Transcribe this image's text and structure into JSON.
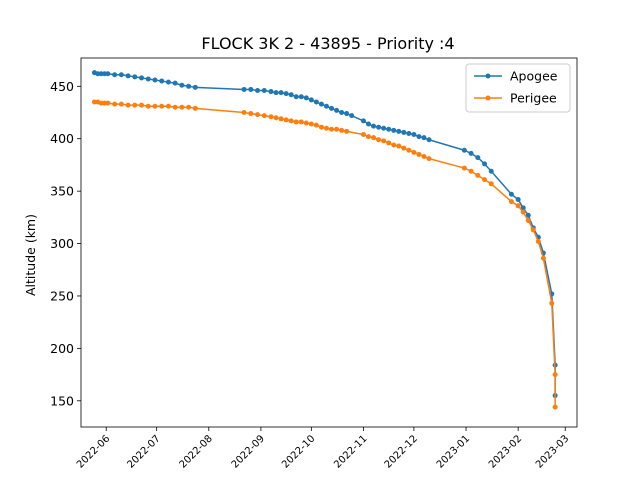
{
  "chart_data": {
    "type": "line",
    "title": "FLOCK 3K 2 - 43895 - Priority :4",
    "xlabel": "",
    "ylabel": "Altitude (km)",
    "x_tick_labels": [
      "2022-06",
      "2022-07",
      "2022-08",
      "2022-09",
      "2022-10",
      "2022-11",
      "2022-12",
      "2023-01",
      "2023-02",
      "2023-03"
    ],
    "x_ticks": [
      "2022-06-01",
      "2022-07-01",
      "2022-08-01",
      "2022-09-01",
      "2022-10-01",
      "2022-11-01",
      "2022-12-01",
      "2023-01-01",
      "2023-02-01",
      "2023-03-01"
    ],
    "xlim": [
      "2022-05-17",
      "2023-03-08"
    ],
    "y_ticks": [
      150,
      200,
      250,
      300,
      350,
      400,
      450
    ],
    "ylim": [
      125,
      477
    ],
    "grid": false,
    "legend_position": "top-right",
    "series": [
      {
        "name": "Apogee",
        "color": "#1f77b4",
        "points": [
          [
            "2022-05-25",
            463
          ],
          [
            "2022-05-27",
            462
          ],
          [
            "2022-05-29",
            462
          ],
          [
            "2022-05-31",
            462
          ],
          [
            "2022-06-02",
            462
          ],
          [
            "2022-06-06",
            461
          ],
          [
            "2022-06-10",
            461
          ],
          [
            "2022-06-14",
            460
          ],
          [
            "2022-06-18",
            459
          ],
          [
            "2022-06-22",
            458
          ],
          [
            "2022-06-26",
            457
          ],
          [
            "2022-06-30",
            456
          ],
          [
            "2022-07-04",
            455
          ],
          [
            "2022-07-08",
            454
          ],
          [
            "2022-07-12",
            453
          ],
          [
            "2022-07-16",
            451
          ],
          [
            "2022-07-20",
            450
          ],
          [
            "2022-07-24",
            449
          ],
          [
            "2022-08-22",
            447
          ],
          [
            "2022-08-26",
            447
          ],
          [
            "2022-08-30",
            446
          ],
          [
            "2022-09-03",
            446
          ],
          [
            "2022-09-07",
            445
          ],
          [
            "2022-09-10",
            444
          ],
          [
            "2022-09-13",
            444
          ],
          [
            "2022-09-16",
            443
          ],
          [
            "2022-09-19",
            442
          ],
          [
            "2022-09-22",
            440
          ],
          [
            "2022-09-25",
            440
          ],
          [
            "2022-09-28",
            439
          ],
          [
            "2022-10-01",
            437
          ],
          [
            "2022-10-04",
            435
          ],
          [
            "2022-10-07",
            433
          ],
          [
            "2022-10-10",
            431
          ],
          [
            "2022-10-13",
            429
          ],
          [
            "2022-10-16",
            427
          ],
          [
            "2022-10-19",
            425
          ],
          [
            "2022-10-22",
            424
          ],
          [
            "2022-10-25",
            422
          ],
          [
            "2022-11-01",
            417
          ],
          [
            "2022-11-04",
            414
          ],
          [
            "2022-11-07",
            412
          ],
          [
            "2022-11-10",
            411
          ],
          [
            "2022-11-13",
            410
          ],
          [
            "2022-11-16",
            409
          ],
          [
            "2022-11-19",
            408
          ],
          [
            "2022-11-22",
            407
          ],
          [
            "2022-11-25",
            406
          ],
          [
            "2022-11-28",
            405
          ],
          [
            "2022-12-01",
            404
          ],
          [
            "2022-12-04",
            402
          ],
          [
            "2022-12-07",
            401
          ],
          [
            "2022-12-10",
            399
          ],
          [
            "2022-12-31",
            389
          ],
          [
            "2023-01-04",
            386
          ],
          [
            "2023-01-08",
            382
          ],
          [
            "2023-01-12",
            376
          ],
          [
            "2023-01-16",
            369
          ],
          [
            "2023-01-28",
            347
          ],
          [
            "2023-02-01",
            342
          ],
          [
            "2023-02-04",
            334
          ],
          [
            "2023-02-07",
            327
          ],
          [
            "2023-02-10",
            315
          ],
          [
            "2023-02-13",
            306
          ],
          [
            "2023-02-16",
            291
          ],
          [
            "2023-02-21",
            252
          ],
          [
            "2023-02-23",
            184
          ],
          [
            "2023-02-23",
            155
          ]
        ]
      },
      {
        "name": "Perigee",
        "color": "#ff7f0e",
        "points": [
          [
            "2022-05-25",
            435
          ],
          [
            "2022-05-27",
            435
          ],
          [
            "2022-05-29",
            434
          ],
          [
            "2022-05-31",
            434
          ],
          [
            "2022-06-02",
            434
          ],
          [
            "2022-06-06",
            433
          ],
          [
            "2022-06-10",
            433
          ],
          [
            "2022-06-14",
            432
          ],
          [
            "2022-06-18",
            432
          ],
          [
            "2022-06-22",
            432
          ],
          [
            "2022-06-26",
            431
          ],
          [
            "2022-06-30",
            431
          ],
          [
            "2022-07-04",
            431
          ],
          [
            "2022-07-08",
            431
          ],
          [
            "2022-07-12",
            430
          ],
          [
            "2022-07-16",
            430
          ],
          [
            "2022-07-20",
            430
          ],
          [
            "2022-07-24",
            429
          ],
          [
            "2022-08-22",
            425
          ],
          [
            "2022-08-26",
            424
          ],
          [
            "2022-08-30",
            423
          ],
          [
            "2022-09-03",
            422
          ],
          [
            "2022-09-07",
            421
          ],
          [
            "2022-09-10",
            420
          ],
          [
            "2022-09-13",
            419
          ],
          [
            "2022-09-16",
            418
          ],
          [
            "2022-09-19",
            417
          ],
          [
            "2022-09-22",
            416
          ],
          [
            "2022-09-25",
            416
          ],
          [
            "2022-09-28",
            415
          ],
          [
            "2022-10-01",
            414
          ],
          [
            "2022-10-04",
            413
          ],
          [
            "2022-10-07",
            411
          ],
          [
            "2022-10-10",
            410
          ],
          [
            "2022-10-13",
            409
          ],
          [
            "2022-10-16",
            409
          ],
          [
            "2022-10-19",
            408
          ],
          [
            "2022-10-22",
            407
          ],
          [
            "2022-11-01",
            404
          ],
          [
            "2022-11-04",
            402
          ],
          [
            "2022-11-07",
            401
          ],
          [
            "2022-11-10",
            399
          ],
          [
            "2022-11-13",
            398
          ],
          [
            "2022-11-16",
            396
          ],
          [
            "2022-11-19",
            394
          ],
          [
            "2022-11-22",
            393
          ],
          [
            "2022-11-25",
            391
          ],
          [
            "2022-11-28",
            389
          ],
          [
            "2022-12-01",
            387
          ],
          [
            "2022-12-04",
            385
          ],
          [
            "2022-12-07",
            383
          ],
          [
            "2022-12-10",
            381
          ],
          [
            "2022-12-31",
            372
          ],
          [
            "2023-01-04",
            369
          ],
          [
            "2023-01-08",
            365
          ],
          [
            "2023-01-12",
            361
          ],
          [
            "2023-01-16",
            357
          ],
          [
            "2023-01-28",
            340
          ],
          [
            "2023-02-01",
            336
          ],
          [
            "2023-02-04",
            330
          ],
          [
            "2023-02-07",
            322
          ],
          [
            "2023-02-10",
            313
          ],
          [
            "2023-02-13",
            302
          ],
          [
            "2023-02-16",
            286
          ],
          [
            "2023-02-21",
            243
          ],
          [
            "2023-02-23",
            175
          ],
          [
            "2023-02-23",
            144
          ]
        ]
      }
    ]
  }
}
